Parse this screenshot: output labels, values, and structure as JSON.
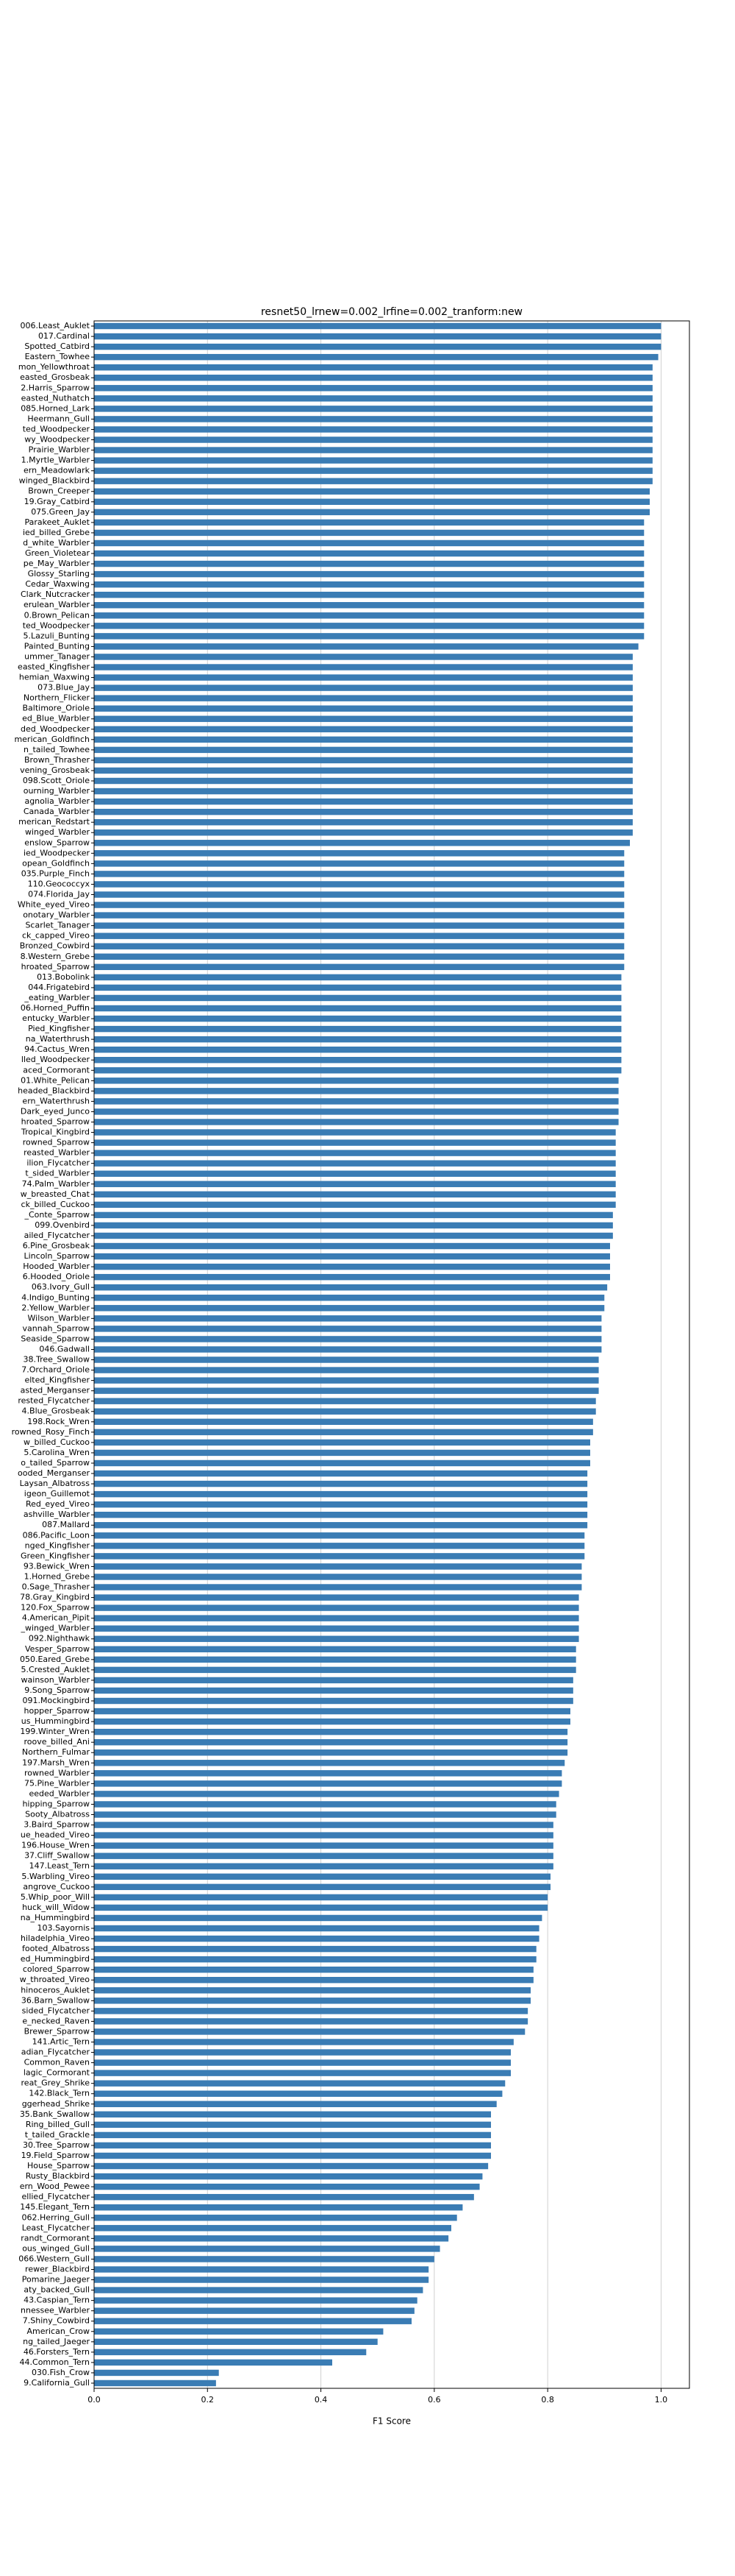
{
  "chart_data": {
    "type": "barh",
    "title": "resnet50_lrnew=0.002_lrfine=0.002_tranform:new",
    "x_label": "F1 Score",
    "color": "#3a7cb4",
    "grid": true,
    "xlim": [
      0,
      1.05
    ],
    "xticks": [
      {
        "value": 0,
        "label": "0.0"
      },
      0.2,
      0.4,
      0.6,
      0.8,
      {
        "value": 1,
        "label": "1.0"
      }
    ],
    "categories": [
      "006.Least_Auklet",
      "017.Cardinal",
      "Spotted_Catbird",
      "Eastern_Towhee",
      "mon_Yellowthroat",
      "easted_Grosbeak",
      "2.Harris_Sparrow",
      "easted_Nuthatch",
      "085.Horned_Lark",
      "Heermann_Gull",
      "ted_Woodpecker",
      "wy_Woodpecker",
      "Prairie_Warbler",
      "1.Myrtle_Warbler",
      "ern_Meadowlark",
      "winged_Blackbird",
      "Brown_Creeper",
      "19.Gray_Catbird",
      "075.Green_Jay",
      "Parakeet_Auklet",
      "ied_billed_Grebe",
      "d_white_Warbler",
      "Green_Violetear",
      "pe_May_Warbler",
      "Glossy_Starling",
      "Cedar_Waxwing",
      "Clark_Nutcracker",
      "erulean_Warbler",
      "0.Brown_Pelican",
      "ted_Woodpecker",
      "5.Lazuli_Bunting",
      "Painted_Bunting",
      "ummer_Tanager",
      "easted_Kingfisher",
      "hemian_Waxwing",
      "073.Blue_Jay",
      "Northern_Flicker",
      "Baltimore_Oriole",
      "ed_Blue_Warbler",
      "ded_Woodpecker",
      "merican_Goldfinch",
      "n_tailed_Towhee",
      "Brown_Thrasher",
      "vening_Grosbeak",
      "098.Scott_Oriole",
      "ourning_Warbler",
      "agnolia_Warbler",
      "Canada_Warbler",
      "merican_Redstart",
      "winged_Warbler",
      "enslow_Sparrow",
      "ied_Woodpecker",
      "opean_Goldfinch",
      "035.Purple_Finch",
      "110.Geococcyx",
      "074.Florida_Jay",
      "White_eyed_Vireo",
      "onotary_Warbler",
      "Scarlet_Tanager",
      "ck_capped_Vireo",
      "Bronzed_Cowbird",
      "8.Western_Grebe",
      "hroated_Sparrow",
      "013.Bobolink",
      "044.Frigatebird",
      "_eating_Warbler",
      "06.Horned_Puffin",
      "entucky_Warbler",
      "Pied_Kingfisher",
      "na_Waterthrush",
      "94.Cactus_Wren",
      "lled_Woodpecker",
      "aced_Cormorant",
      "01.White_Pelican",
      "headed_Blackbird",
      "ern_Waterthrush",
      "Dark_eyed_Junco",
      "hroated_Sparrow",
      "Tropical_Kingbird",
      "rowned_Sparrow",
      "reasted_Warbler",
      "ilion_Flycatcher",
      "t_sided_Warbler",
      "74.Palm_Warbler",
      "w_breasted_Chat",
      "ck_billed_Cuckoo",
      "_Conte_Sparrow",
      "099.Ovenbird",
      "ailed_Flycatcher",
      "6.Pine_Grosbeak",
      "Lincoln_Sparrow",
      "Hooded_Warbler",
      "6.Hooded_Oriole",
      "063.Ivory_Gull",
      "4.Indigo_Bunting",
      "2.Yellow_Warbler",
      "Wilson_Warbler",
      "vannah_Sparrow",
      "Seaside_Sparrow",
      "046.Gadwall",
      "38.Tree_Swallow",
      "7.Orchard_Oriole",
      "elted_Kingfisher",
      "asted_Merganser",
      "rested_Flycatcher",
      "4.Blue_Grosbeak",
      "198.Rock_Wren",
      "rowned_Rosy_Finch",
      "w_billed_Cuckoo",
      "5.Carolina_Wren",
      "o_tailed_Sparrow",
      "ooded_Merganser",
      "Laysan_Albatross",
      "igeon_Guillemot",
      "Red_eyed_Vireo",
      "ashville_Warbler",
      "087.Mallard",
      "086.Pacific_Loon",
      "nged_Kingfisher",
      "Green_Kingfisher",
      "93.Bewick_Wren",
      "1.Horned_Grebe",
      "0.Sage_Thrasher",
      "78.Gray_Kingbird",
      "120.Fox_Sparrow",
      "4.American_Pipit",
      "_winged_Warbler",
      "092.Nighthawk",
      "Vesper_Sparrow",
      "050.Eared_Grebe",
      "5.Crested_Auklet",
      "wainson_Warbler",
      "9.Song_Sparrow",
      "091.Mockingbird",
      "hopper_Sparrow",
      "us_Hummingbird",
      "199.Winter_Wren",
      "roove_billed_Ani",
      "Northern_Fulmar",
      "197.Marsh_Wren",
      "rowned_Warbler",
      "75.Pine_Warbler",
      "eeded_Warbler",
      "hipping_Sparrow",
      "Sooty_Albatross",
      "3.Baird_Sparrow",
      "ue_headed_Vireo",
      "196.House_Wren",
      "37.Cliff_Swallow",
      "147.Least_Tern",
      "5.Warbling_Vireo",
      "angrove_Cuckoo",
      "5.Whip_poor_Will",
      "huck_will_Widow",
      "na_Hummingbird",
      "103.Sayornis",
      "hiladelphia_Vireo",
      "footed_Albatross",
      "ed_Hummingbird",
      "colored_Sparrow",
      "w_throated_Vireo",
      "hinoceros_Auklet",
      "36.Barn_Swallow",
      "sided_Flycatcher",
      "e_necked_Raven",
      "Brewer_Sparrow",
      "141.Artic_Tern",
      "adian_Flycatcher",
      "Common_Raven",
      "lagic_Cormorant",
      "reat_Grey_Shrike",
      "142.Black_Tern",
      "ggerhead_Shrike",
      "35.Bank_Swallow",
      "Ring_billed_Gull",
      "t_tailed_Grackle",
      "30.Tree_Sparrow",
      "19.Field_Sparrow",
      "House_Sparrow",
      "Rusty_Blackbird",
      "ern_Wood_Pewee",
      "ellied_Flycatcher",
      "145.Elegant_Tern",
      "062.Herring_Gull",
      "Least_Flycatcher",
      "randt_Cormorant",
      "ous_winged_Gull",
      "066.Western_Gull",
      "rewer_Blackbird",
      "Pomarine_Jaeger",
      "aty_backed_Gull",
      "43.Caspian_Tern",
      "nnessee_Warbler",
      "7.Shiny_Cowbird",
      "American_Crow",
      "ng_tailed_Jaeger",
      "46.Forsters_Tern",
      "44.Common_Tern",
      "030.Fish_Crow",
      "9.California_Gull"
    ],
    "values": [
      1.0,
      1.0,
      1.0,
      0.995,
      0.985,
      0.985,
      0.985,
      0.985,
      0.985,
      0.985,
      0.985,
      0.985,
      0.985,
      0.985,
      0.985,
      0.985,
      0.98,
      0.98,
      0.98,
      0.97,
      0.97,
      0.97,
      0.97,
      0.97,
      0.97,
      0.97,
      0.97,
      0.97,
      0.97,
      0.97,
      0.97,
      0.96,
      0.95,
      0.95,
      0.95,
      0.95,
      0.95,
      0.95,
      0.95,
      0.95,
      0.95,
      0.95,
      0.95,
      0.95,
      0.95,
      0.95,
      0.95,
      0.95,
      0.95,
      0.95,
      0.945,
      0.935,
      0.935,
      0.935,
      0.935,
      0.935,
      0.935,
      0.935,
      0.935,
      0.935,
      0.935,
      0.935,
      0.935,
      0.93,
      0.93,
      0.93,
      0.93,
      0.93,
      0.93,
      0.93,
      0.93,
      0.93,
      0.93,
      0.925,
      0.925,
      0.925,
      0.925,
      0.925,
      0.92,
      0.92,
      0.92,
      0.92,
      0.92,
      0.92,
      0.92,
      0.92,
      0.915,
      0.915,
      0.915,
      0.91,
      0.91,
      0.91,
      0.91,
      0.905,
      0.9,
      0.9,
      0.895,
      0.895,
      0.895,
      0.895,
      0.89,
      0.89,
      0.89,
      0.89,
      0.885,
      0.885,
      0.88,
      0.88,
      0.875,
      0.875,
      0.875,
      0.87,
      0.87,
      0.87,
      0.87,
      0.87,
      0.87,
      0.865,
      0.865,
      0.865,
      0.86,
      0.86,
      0.86,
      0.855,
      0.855,
      0.855,
      0.855,
      0.855,
      0.85,
      0.85,
      0.85,
      0.845,
      0.845,
      0.845,
      0.84,
      0.84,
      0.835,
      0.835,
      0.835,
      0.83,
      0.825,
      0.825,
      0.82,
      0.815,
      0.815,
      0.81,
      0.81,
      0.81,
      0.81,
      0.81,
      0.805,
      0.805,
      0.8,
      0.8,
      0.79,
      0.785,
      0.785,
      0.78,
      0.78,
      0.775,
      0.775,
      0.77,
      0.77,
      0.765,
      0.765,
      0.76,
      0.74,
      0.735,
      0.735,
      0.735,
      0.725,
      0.72,
      0.71,
      0.7,
      0.7,
      0.7,
      0.7,
      0.7,
      0.695,
      0.685,
      0.68,
      0.67,
      0.65,
      0.64,
      0.63,
      0.625,
      0.61,
      0.6,
      0.59,
      0.59,
      0.58,
      0.57,
      0.565,
      0.56,
      0.51,
      0.5,
      0.48,
      0.42,
      0.22,
      0.215
    ]
  }
}
